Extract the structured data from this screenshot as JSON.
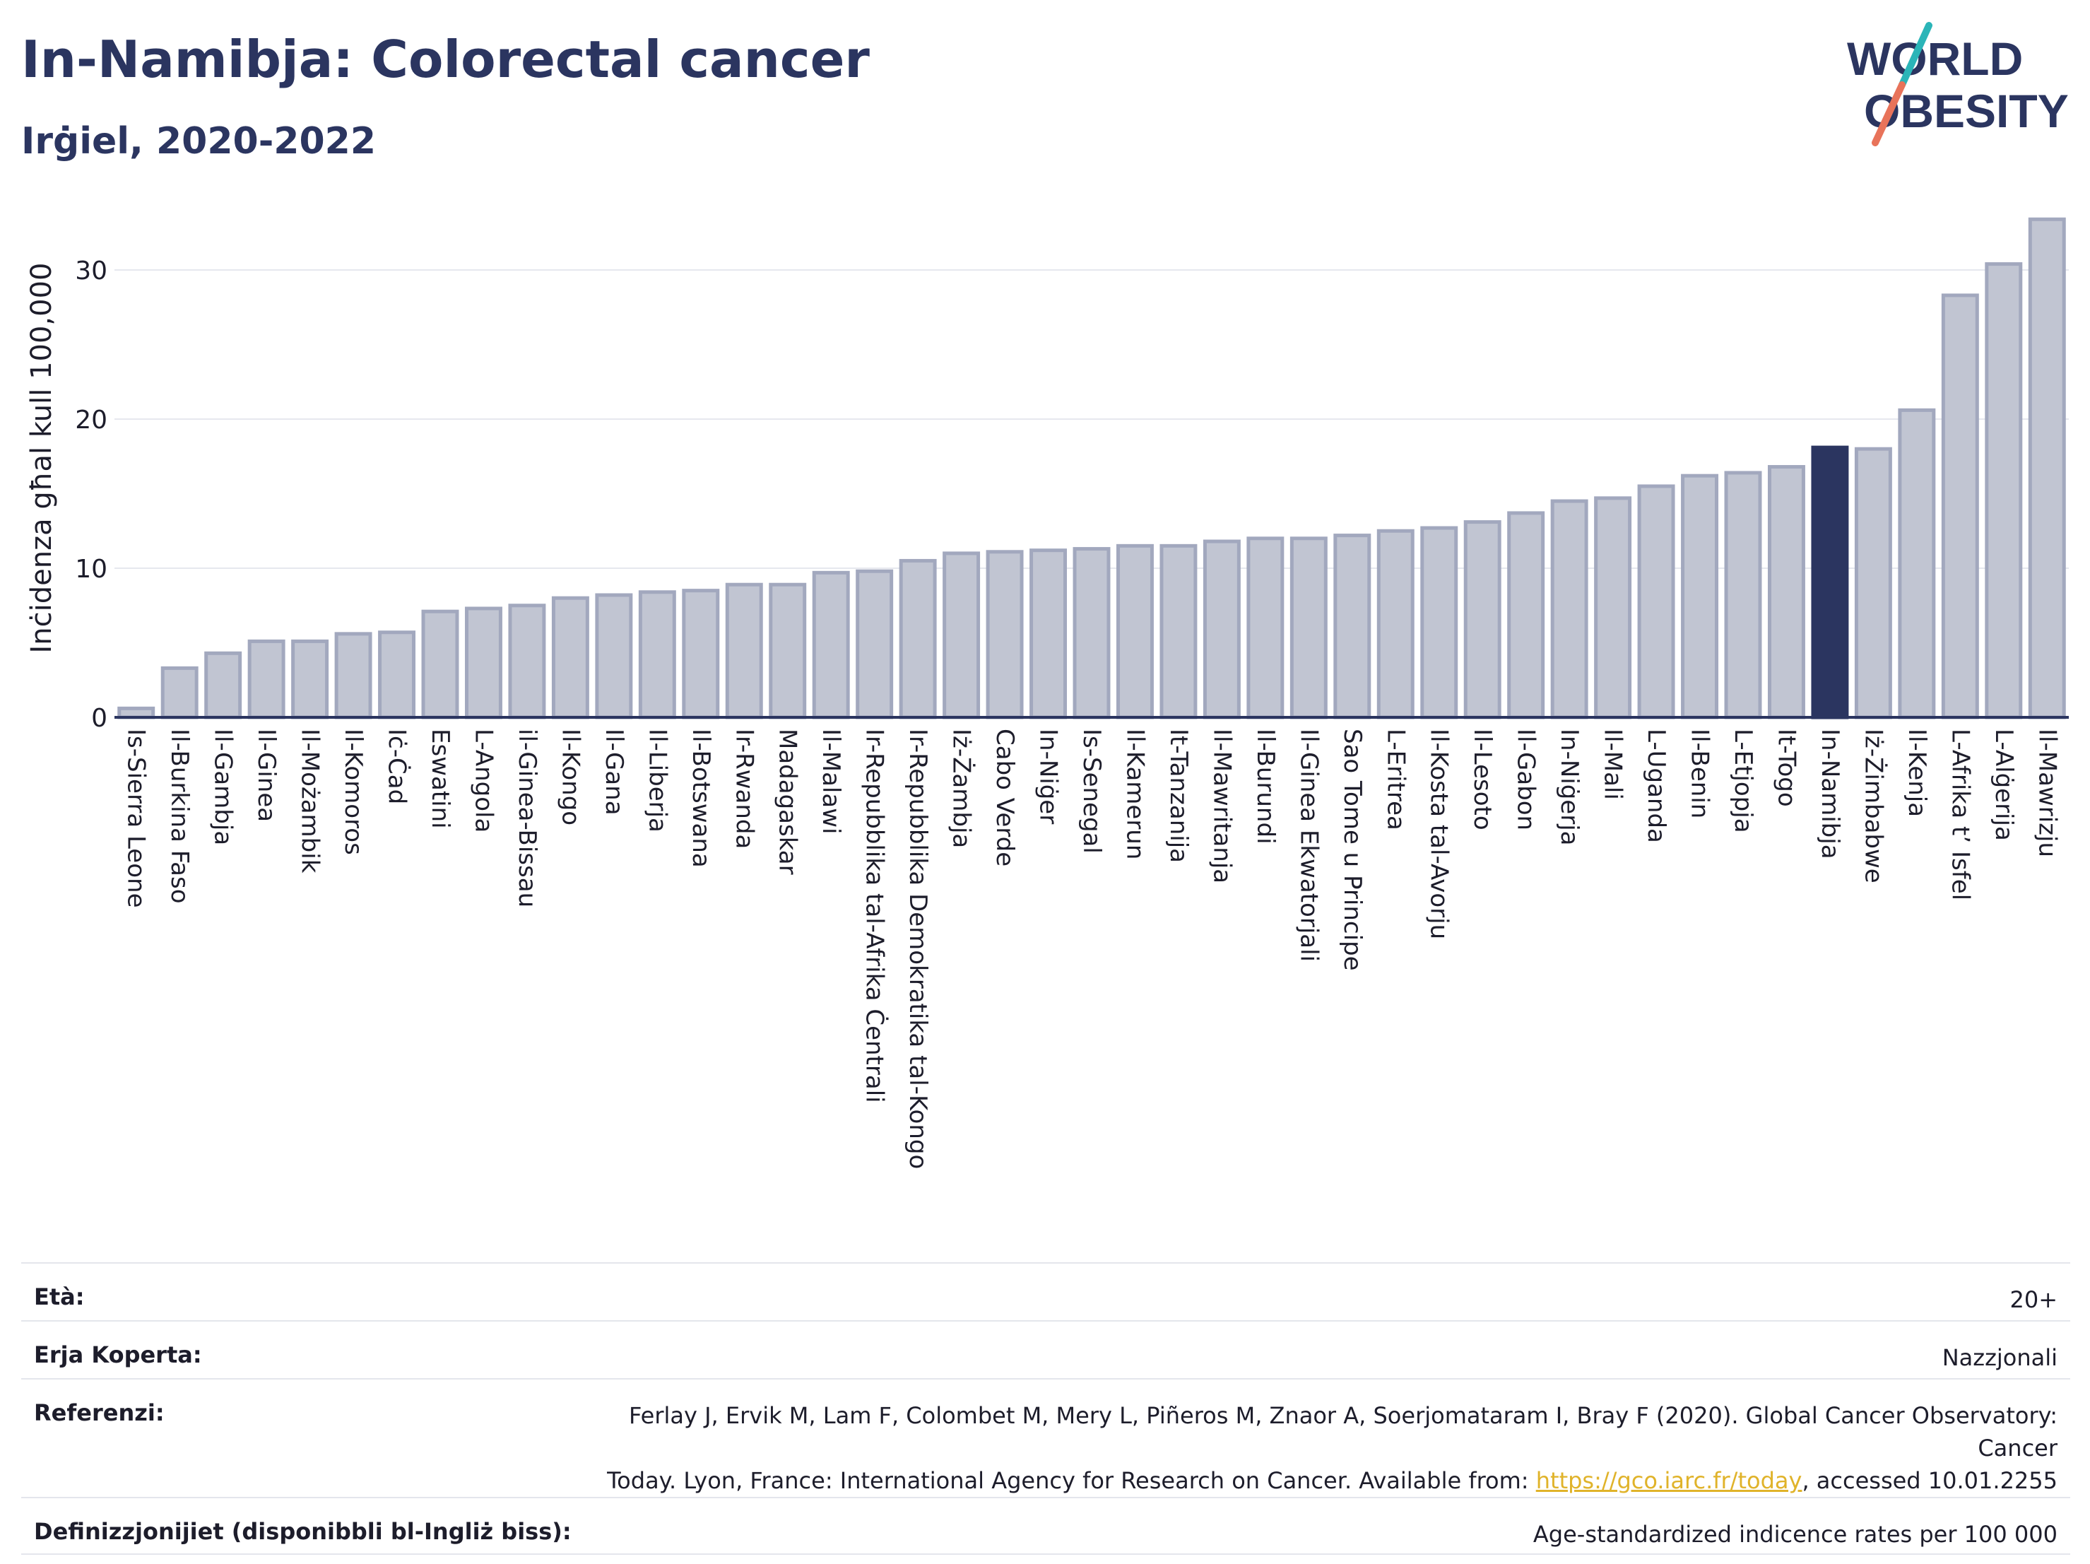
{
  "header": {
    "title": "In-Namibja: Colorectal cancer",
    "subtitle": "Irġiel, 2020-2022"
  },
  "logo": {
    "line1": "WORLD",
    "line2": "OBESITY",
    "slash_colors": [
      "#2bb5b8",
      "#e8735a"
    ]
  },
  "colors": {
    "bar": "#c1c5d2",
    "bar_border": "#a2a8be",
    "highlight": "#2b3560",
    "grid": "#e6e8ee",
    "axis": "#2b3560"
  },
  "chart_data": {
    "type": "bar",
    "ylabel": "Inċidenza għal kull 100,000",
    "ylim": [
      0,
      34
    ],
    "yticks": [
      0,
      10,
      20,
      30
    ],
    "grid": true,
    "highlight": "In-Namibja",
    "categories": [
      "Is-Sierra Leone",
      "Il-Burkina Faso",
      "Il-Gambja",
      "Il-Ginea",
      "Il-Możambik",
      "Il-Komoros",
      "Iċ-Ċad",
      "Eswatini",
      "L-Angola",
      "il-Ginea-Bissau",
      "Il-Kongo",
      "Il-Gana",
      "Il-Liberja",
      "Il-Botswana",
      "Ir-Rwanda",
      "Madagaskar",
      "Il-Malawi",
      "Ir-Repubblika tal-Afrika Ċentrali",
      "Ir-Repubblika Demokratika tal-Kongo",
      "Iż-Żambja",
      "Cabo Verde",
      "In-Niġer",
      "Is-Senegal",
      "Il-Kamerun",
      "It-Tanzanija",
      "Il-Mawritanja",
      "Il-Burundi",
      "Il-Ginea Ekwatorjali",
      "Sao Tome u Principe",
      "L-Eritrea",
      "Il-Kosta tal-Avorju",
      "Il-Lesoto",
      "Il-Gabon",
      "In-Niġerja",
      "Il-Mali",
      "L-Uganda",
      "Il-Benin",
      "L-Etjopja",
      "It-Togo",
      "In-Namibja",
      "Iż-Żimbabwe",
      "Il-Kenja",
      "L-Afrika t’ Isfel",
      "L-Alġerija",
      "Il-Mawrizju"
    ],
    "values": [
      0.6,
      3.3,
      4.3,
      5.1,
      5.1,
      5.6,
      5.7,
      7.1,
      7.3,
      7.5,
      8.0,
      8.2,
      8.4,
      8.5,
      8.9,
      8.9,
      9.7,
      9.8,
      10.5,
      11.0,
      11.1,
      11.2,
      11.3,
      11.5,
      11.5,
      11.8,
      12.0,
      12.0,
      12.2,
      12.5,
      12.7,
      13.1,
      13.7,
      14.5,
      14.7,
      15.5,
      16.2,
      16.4,
      16.8,
      18.1,
      18.0,
      20.6,
      28.3,
      30.4,
      33.4
    ]
  },
  "meta": {
    "age_label": "Età:",
    "age_value": "20+",
    "area_label": "Erja Koperta:",
    "area_value": "Nazzjonali",
    "ref_label": "Referenzi:",
    "ref_line1": "Ferlay J, Ervik M, Lam F, Colombet M, Mery L, Piñeros M, Znaor A, Soerjomataram I, Bray F (2020). Global Cancer Observatory: Cancer",
    "ref_line2_pre": "Today. Lyon, France: International Agency for Research on Cancer. Available from: ",
    "ref_link": "https://gco.iarc.fr/today",
    "ref_line2_post": ", accessed 10.01.2255",
    "def_label": "Definizzjonijiet (disponibbli bl-Ingliż biss):",
    "def_value": "Age-standardized indicence rates per 100 000"
  }
}
